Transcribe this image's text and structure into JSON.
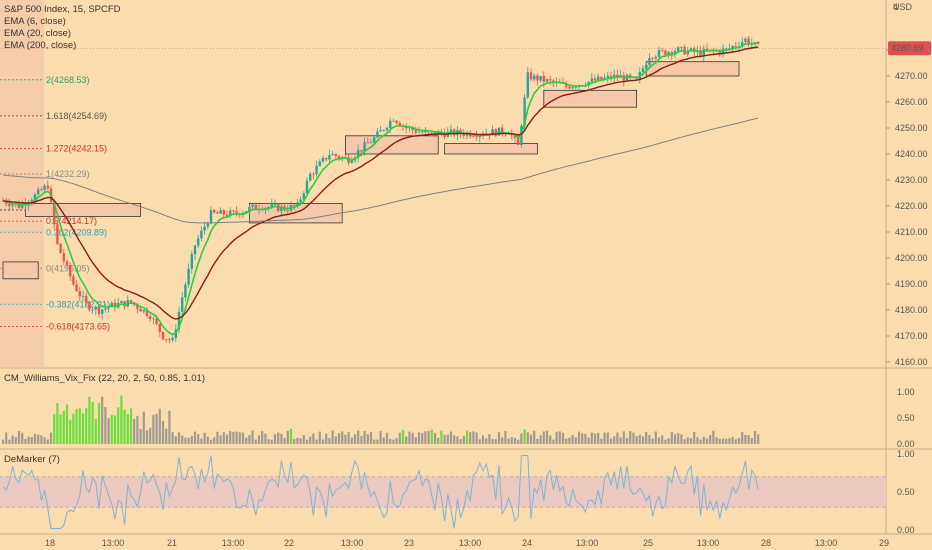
{
  "header": {
    "symbol_line": "S&P 500 Index, 15, SPCFD",
    "indicators": [
      "EMA (6, close)",
      "EMA (20, close)",
      "EMA (200, close)"
    ],
    "currency": "USD",
    "price_top_label": "4"
  },
  "price_tag": {
    "value": "4280.69",
    "color": "#e05050"
  },
  "colors": {
    "background": "#fbdcae",
    "up_candle": "#26a69a",
    "down_candle": "#ef5350",
    "ema6": "#2ecc40",
    "ema20": "#8b1a1a",
    "ema200": "#808080",
    "vix_green": "#66e03a",
    "vix_gray": "#a09a92",
    "demarker_line": "#7fb3d5",
    "zone_fill": "#f4c8a8",
    "demarker_band": "#e8c4c4"
  },
  "chart_data": [
    {
      "type": "candlestick",
      "title": "S&P 500 Index, 15, SPCFD",
      "ylim": [
        4160,
        4297
      ],
      "y_ticks": [
        4160,
        4170,
        4180,
        4190,
        4200,
        4210,
        4220,
        4230,
        4240,
        4250,
        4260,
        4270,
        4280
      ],
      "x_ticks": [
        "18",
        "13:00",
        "21",
        "13:00",
        "22",
        "13:00",
        "23",
        "13:00",
        "24",
        "13:00",
        "25",
        "13:00",
        "28",
        "13:00",
        "29"
      ],
      "fib_levels": [
        {
          "label": "2(4268.53)",
          "value": 4268.53,
          "color": "#2e9e6e"
        },
        {
          "label": "1.618(4254.69)",
          "value": 4254.69,
          "color": "#555555"
        },
        {
          "label": "1.272(4242.15)",
          "value": 4242.15,
          "color": "#d32f2f"
        },
        {
          "label": "1(4232.29)",
          "value": 4232.29,
          "color": "#888888"
        },
        {
          "label": "0.618(4218.45)",
          "value": 4218.45,
          "color": "#222222"
        },
        {
          "label": "0.5(4214.17)",
          "value": 4214.17,
          "color": "#d32f2f"
        },
        {
          "label": "0.382(4209.89)",
          "value": 4209.89,
          "color": "#2e9ec0"
        },
        {
          "label": "0(4196.05)",
          "value": 4196.05,
          "color": "#888888"
        },
        {
          "label": "-0.382(4182.21)",
          "value": 4182.21,
          "color": "#2e9ec0"
        },
        {
          "label": "-0.618(4173.65)",
          "value": 4173.65,
          "color": "#d32f2f"
        }
      ],
      "zones": [
        {
          "t0": 0,
          "t1": 11,
          "y0": 4198.5,
          "y1": 4192
        },
        {
          "t0": 7,
          "t1": 43,
          "y0": 4221,
          "y1": 4216
        },
        {
          "t0": 77,
          "t1": 106,
          "y0": 4221,
          "y1": 4213.5
        },
        {
          "t0": 107,
          "t1": 136,
          "y0": 4247,
          "y1": 4240
        },
        {
          "t0": 138,
          "t1": 167,
          "y0": 4244,
          "y1": 4240
        },
        {
          "t0": 169,
          "t1": 198,
          "y0": 4264.5,
          "y1": 4258
        },
        {
          "t0": 201,
          "t1": 230,
          "y0": 4275.5,
          "y1": 4270
        }
      ],
      "series": [
        {
          "name": "EMA (6, close)"
        },
        {
          "name": "EMA (20, close)"
        },
        {
          "name": "EMA (200, close)"
        }
      ]
    },
    {
      "type": "bar",
      "title": "CM_Williams_Vix_Fix (22, 20, 2, 50, 0.85, 1.01)",
      "ylim": [
        0,
        1.3
      ],
      "y_ticks": [
        "0.00",
        "0.50",
        "1.00"
      ]
    },
    {
      "type": "line",
      "title": "DeMarker (7)",
      "ylim": [
        0,
        1.05
      ],
      "y_ticks": [
        "0.00",
        "0.50",
        "1.00"
      ],
      "band": [
        0.3,
        0.7
      ]
    }
  ]
}
